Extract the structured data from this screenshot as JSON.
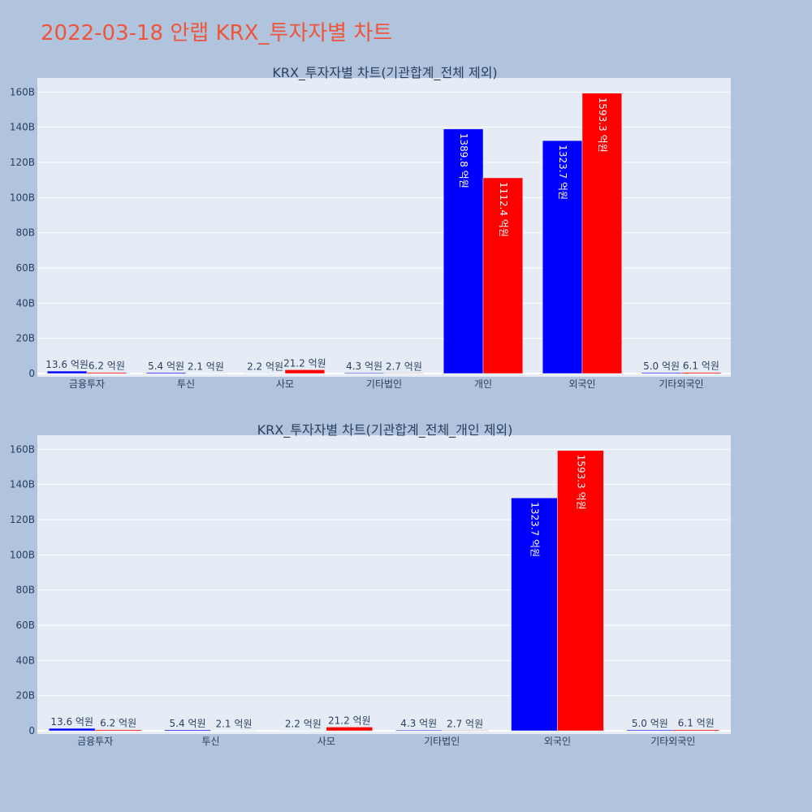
{
  "page_title": "2022-03-18 안랩 KRX_투자자별 차트",
  "colors": {
    "background": "#b0c4de",
    "plot_bg": "#e5ecf6",
    "title": "#ef553b",
    "text": "#2a3f5f",
    "grid": "#ffffff",
    "buy": "#0000ff",
    "sell": "#ff0000"
  },
  "chart_data": [
    {
      "type": "bar",
      "title": "KRX_투자자별 차트(기관합계_전체 제외)",
      "categories": [
        "금융투자",
        "투신",
        "사모",
        "기타법인",
        "개인",
        "외국인",
        "기타외국인"
      ],
      "series": [
        {
          "values": [
            1360000000,
            540000000,
            220000000,
            430000000,
            138980000000,
            132370000000,
            500000000
          ],
          "labels": [
            "13.6 억원",
            "5.4 억원",
            "2.2 억원",
            "4.3 억원",
            "1389.8 억원",
            "1323.7 억원",
            "5.0 억원"
          ]
        },
        {
          "values": [
            620000000,
            210000000,
            2120000000,
            270000000,
            111240000000,
            159330000000,
            610000000
          ],
          "labels": [
            "6.2 억원",
            "2.1 억원",
            "21.2 억원",
            "2.7 억원",
            "1112.4 억원",
            "1593.3 억원",
            "6.1 억원"
          ]
        }
      ],
      "yticks": [
        "0",
        "20B",
        "40B",
        "60B",
        "80B",
        "100B",
        "120B",
        "140B",
        "160B"
      ],
      "ylim": [
        0,
        168000000000
      ],
      "grid": true,
      "legend": "none"
    },
    {
      "type": "bar",
      "title": "KRX_투자자별 차트(기관합계_전체_개인 제외)",
      "categories": [
        "금융투자",
        "투신",
        "사모",
        "기타법인",
        "외국인",
        "기타외국인"
      ],
      "series": [
        {
          "values": [
            1360000000,
            540000000,
            220000000,
            430000000,
            132370000000,
            500000000
          ],
          "labels": [
            "13.6 억원",
            "5.4 억원",
            "2.2 억원",
            "4.3 억원",
            "1323.7 억원",
            "5.0 억원"
          ]
        },
        {
          "values": [
            620000000,
            210000000,
            2120000000,
            270000000,
            159330000000,
            610000000
          ],
          "labels": [
            "6.2 억원",
            "2.1 억원",
            "21.2 억원",
            "2.7 억원",
            "1593.3 억원",
            "6.1 억원"
          ]
        }
      ],
      "yticks": [
        "0",
        "20B",
        "40B",
        "60B",
        "80B",
        "100B",
        "120B",
        "140B",
        "160B"
      ],
      "ylim": [
        0,
        168000000000
      ],
      "grid": true,
      "legend": "none"
    }
  ]
}
